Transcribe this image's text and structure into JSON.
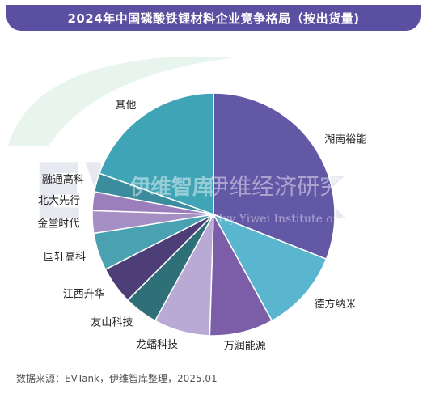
{
  "title": "2024年中国磷酸铁锂材料企业竞争格局（按出货量)",
  "source": "数据来源：EVTank，伊维智库整理，2025.01",
  "watermark": {
    "logo_text": "EVTank",
    "logo_sub_cn": "伊维智库",
    "institute_cn": "伊维经济研究院",
    "institute_en": "Ivy Yiwei Institute of Economics"
  },
  "chart_data": {
    "type": "pie",
    "title": "2024年中国磷酸铁锂材料企业竞争格局（按出货量)",
    "start": "12 o'clock, clockwise",
    "series": [
      {
        "label": "湖南裕能",
        "value": 31,
        "color": "#6358a6"
      },
      {
        "label": "德方纳米",
        "value": 11,
        "color": "#5ab5cf"
      },
      {
        "label": "万润能源",
        "value": 8.5,
        "color": "#7c5ea8"
      },
      {
        "label": "龙蟠科技",
        "value": 7.5,
        "color": "#b9a9d5"
      },
      {
        "label": "友山科技",
        "value": 4.5,
        "color": "#2f6f77"
      },
      {
        "label": "江西升华",
        "value": 5,
        "color": "#4e3e78"
      },
      {
        "label": "国轩高科",
        "value": 5,
        "color": "#4aa2b1"
      },
      {
        "label": "金堂时代",
        "value": 3,
        "color": "#a58fc4"
      },
      {
        "label": "北大先行",
        "value": 2.5,
        "color": "#9a7fbc"
      },
      {
        "label": "融通高科",
        "value": 2.5,
        "color": "#3b8c9c"
      },
      {
        "label": "其他",
        "value": 19.5,
        "color": "#3fa4b6"
      }
    ]
  }
}
